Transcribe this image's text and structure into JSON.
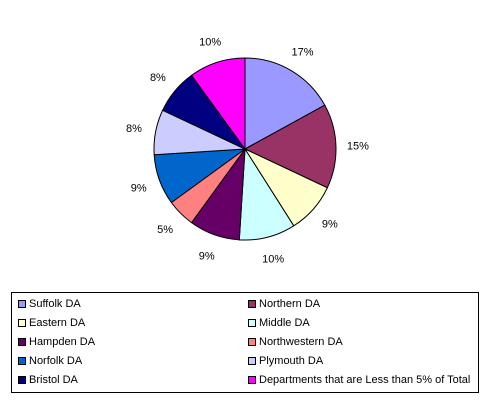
{
  "chart_data": {
    "type": "pie",
    "title": "",
    "slices": [
      {
        "label": "Suffolk DA",
        "value": 17,
        "display": "17%",
        "color": "#9999ff"
      },
      {
        "label": "Northern DA",
        "value": 15,
        "display": "15%",
        "color": "#993366"
      },
      {
        "label": "Eastern DA",
        "value": 9,
        "display": "9%",
        "color": "#ffffcc"
      },
      {
        "label": "Middle DA",
        "value": 10,
        "display": "10%",
        "color": "#ccffff"
      },
      {
        "label": "Hampden DA",
        "value": 9,
        "display": "9%",
        "color": "#660066"
      },
      {
        "label": "Northwestern DA",
        "value": 5,
        "display": "5%",
        "color": "#ff8080"
      },
      {
        "label": "Norfolk DA",
        "value": 9,
        "display": "9%",
        "color": "#0066cc"
      },
      {
        "label": "Plymouth DA",
        "value": 8,
        "display": "8%",
        "color": "#ccccff"
      },
      {
        "label": "Bristol DA",
        "value": 8,
        "display": "8%",
        "color": "#000080"
      },
      {
        "label": "Departments that are Less than 5% of Total",
        "value": 10,
        "display": "10%",
        "color": "#ff00ff"
      }
    ],
    "legend_position": "bottom"
  }
}
